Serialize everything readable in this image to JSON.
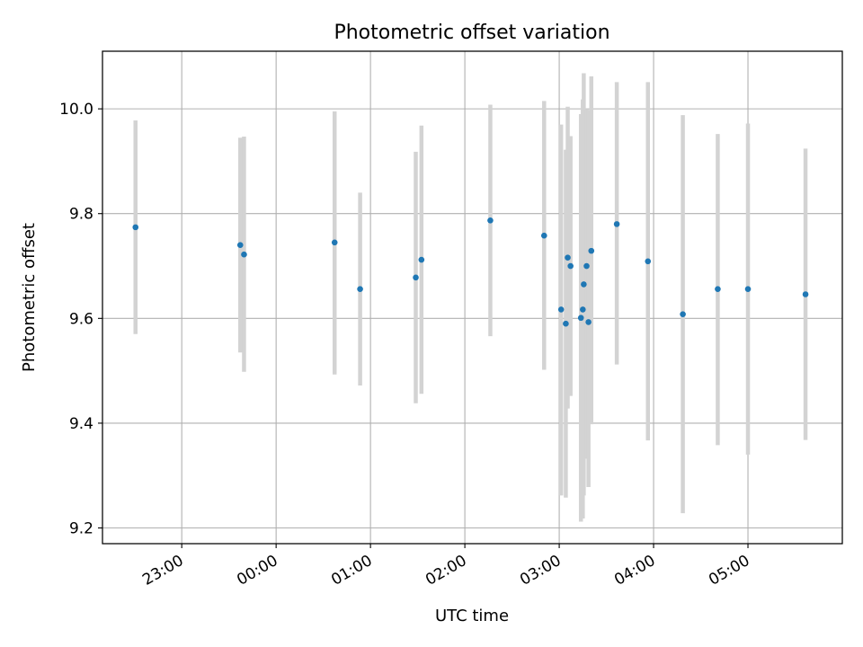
{
  "chart_data": {
    "type": "scatter",
    "title": "Photometric offset variation",
    "xlabel": "UTC time",
    "ylabel": "Photometric offset",
    "x_unit": "hours relative to 00:00 UTC",
    "xlim": [
      -1.84,
      6.0
    ],
    "ylim": [
      9.17,
      10.11
    ],
    "x_ticks": [
      {
        "value": -1.0,
        "label": "23:00"
      },
      {
        "value": 0.0,
        "label": "00:00"
      },
      {
        "value": 1.0,
        "label": "01:00"
      },
      {
        "value": 2.0,
        "label": "02:00"
      },
      {
        "value": 3.0,
        "label": "03:00"
      },
      {
        "value": 4.0,
        "label": "04:00"
      },
      {
        "value": 5.0,
        "label": "05:00"
      }
    ],
    "y_ticks": [
      {
        "value": 9.2,
        "label": "9.2"
      },
      {
        "value": 9.4,
        "label": "9.4"
      },
      {
        "value": 9.6,
        "label": "9.6"
      },
      {
        "value": 9.8,
        "label": "9.8"
      },
      {
        "value": 10.0,
        "label": "10.0"
      }
    ],
    "x_tick_rotation_deg": 30,
    "grid": true,
    "legend": "none",
    "colors": {
      "point": "#1f77b4",
      "errorbar": "#d3d3d3",
      "grid": "#b0b0b0",
      "axes": "#000000"
    },
    "points": [
      {
        "x": -1.49,
        "y": 9.774,
        "ylo": 9.57,
        "yhi": 9.978
      },
      {
        "x": -0.38,
        "y": 9.74,
        "ylo": 9.535,
        "yhi": 9.945
      },
      {
        "x": -0.34,
        "y": 9.722,
        "ylo": 9.498,
        "yhi": 9.947
      },
      {
        "x": 0.62,
        "y": 9.745,
        "ylo": 9.493,
        "yhi": 9.995
      },
      {
        "x": 0.89,
        "y": 9.656,
        "ylo": 9.472,
        "yhi": 9.84
      },
      {
        "x": 1.48,
        "y": 9.678,
        "ylo": 9.438,
        "yhi": 9.918
      },
      {
        "x": 1.54,
        "y": 9.712,
        "ylo": 9.456,
        "yhi": 9.968
      },
      {
        "x": 2.27,
        "y": 9.787,
        "ylo": 9.566,
        "yhi": 10.008
      },
      {
        "x": 2.84,
        "y": 9.758,
        "ylo": 9.502,
        "yhi": 10.015
      },
      {
        "x": 3.02,
        "y": 9.617,
        "ylo": 9.262,
        "yhi": 9.97
      },
      {
        "x": 3.07,
        "y": 9.59,
        "ylo": 9.258,
        "yhi": 9.922
      },
      {
        "x": 3.09,
        "y": 9.716,
        "ylo": 9.428,
        "yhi": 10.004
      },
      {
        "x": 3.12,
        "y": 9.7,
        "ylo": 9.452,
        "yhi": 9.948
      },
      {
        "x": 3.23,
        "y": 9.601,
        "ylo": 9.212,
        "yhi": 9.99
      },
      {
        "x": 3.25,
        "y": 9.617,
        "ylo": 9.218,
        "yhi": 10.018
      },
      {
        "x": 3.26,
        "y": 9.665,
        "ylo": 9.262,
        "yhi": 10.068
      },
      {
        "x": 3.29,
        "y": 9.7,
        "ylo": 9.332,
        "yhi": 10.0
      },
      {
        "x": 3.31,
        "y": 9.593,
        "ylo": 9.278,
        "yhi": 9.998
      },
      {
        "x": 3.34,
        "y": 9.729,
        "ylo": 9.398,
        "yhi": 10.062
      },
      {
        "x": 3.61,
        "y": 9.78,
        "ylo": 9.512,
        "yhi": 10.051
      },
      {
        "x": 3.94,
        "y": 9.709,
        "ylo": 9.367,
        "yhi": 10.051
      },
      {
        "x": 4.31,
        "y": 9.608,
        "ylo": 9.228,
        "yhi": 9.988
      },
      {
        "x": 4.68,
        "y": 9.656,
        "ylo": 9.358,
        "yhi": 9.952
      },
      {
        "x": 5.0,
        "y": 9.656,
        "ylo": 9.34,
        "yhi": 9.972
      },
      {
        "x": 5.61,
        "y": 9.646,
        "ylo": 9.368,
        "yhi": 9.924
      }
    ]
  }
}
